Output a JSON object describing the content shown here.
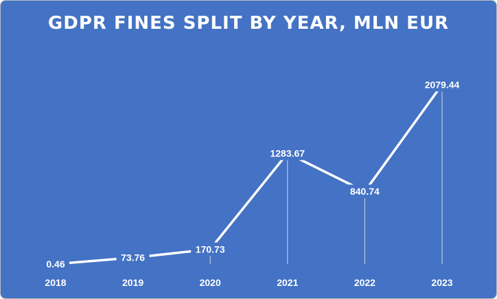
{
  "colors": {
    "background": "#4472c4",
    "line": "#ffffff",
    "drop_line": "#d9d9d9",
    "text": "#ffffff"
  },
  "chart_data": {
    "type": "line",
    "title": "GDPR FINES SPLIT BY YEAR, MLN EUR",
    "xlabel": "",
    "ylabel": "",
    "categories": [
      "2018",
      "2019",
      "2020",
      "2021",
      "2022",
      "2023"
    ],
    "series": [
      {
        "values": [
          0.46,
          73.76,
          170.73,
          1283.67,
          840.74,
          2079.44
        ]
      }
    ],
    "data_labels": [
      "0.46",
      "73.76",
      "170.73",
      "1283.67",
      "840.74",
      "2079.44"
    ],
    "ylim": [
      0,
      2400
    ],
    "grid": false,
    "legend": "none",
    "drop_lines": true
  }
}
